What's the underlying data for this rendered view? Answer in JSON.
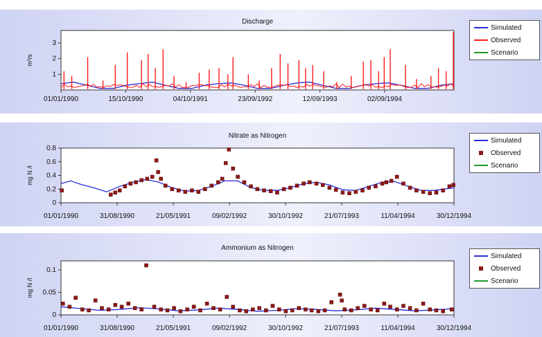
{
  "chart_data": [
    {
      "type": "line",
      "title": "Discharge",
      "ylabel": "m³/s",
      "ylim": [
        0,
        3.8
      ],
      "yticks": [
        "1",
        "2",
        "3"
      ],
      "xticks": [
        "01/01/1990",
        "15/10/1990",
        "04/10/1991",
        "23/09/1992",
        "12/09/1993",
        "02/09/1994"
      ],
      "xstart": "1990-01-01",
      "xend": "1994-12-31",
      "legend": [
        "Simulated",
        "Observed",
        "Scenario"
      ],
      "legend_position": "right",
      "series": [
        {
          "name": "Simulated",
          "color": "#2a2ad8",
          "style": "line",
          "x": [
            "1990-01-01",
            "1990-03-01",
            "1990-05-01",
            "1990-07-01",
            "1990-09-01",
            "1990-11-01",
            "1991-01-01",
            "1991-03-01",
            "1991-05-01",
            "1991-07-01",
            "1991-09-01",
            "1991-11-01",
            "1992-01-01",
            "1992-03-01",
            "1992-05-01",
            "1992-07-01",
            "1992-09-01",
            "1992-11-01",
            "1993-01-01",
            "1993-03-01",
            "1993-05-01",
            "1993-07-01",
            "1993-09-01",
            "1993-11-01",
            "1994-01-01",
            "1994-03-01",
            "1994-05-01",
            "1994-07-01",
            "1994-09-01",
            "1994-11-01",
            "1994-12-31"
          ],
          "y": [
            0.4,
            0.5,
            0.3,
            0.1,
            0.1,
            0.3,
            0.4,
            0.5,
            0.3,
            0.1,
            0.1,
            0.3,
            0.4,
            0.45,
            0.3,
            0.1,
            0.1,
            0.3,
            0.45,
            0.5,
            0.3,
            0.1,
            0.1,
            0.3,
            0.4,
            0.45,
            0.3,
            0.1,
            0.1,
            0.3,
            0.4
          ]
        },
        {
          "name": "Observed",
          "color": "#ff1a1a",
          "style": "spikes",
          "x": [
            "1990-01-15",
            "1990-02-20",
            "1990-05-05",
            "1990-07-15",
            "1990-09-10",
            "1990-11-05",
            "1991-01-10",
            "1991-02-10",
            "1991-03-15",
            "1991-04-20",
            "1991-06-10",
            "1991-08-05",
            "1991-10-05",
            "1991-11-20",
            "1992-01-05",
            "1992-02-15",
            "1992-03-10",
            "1992-05-20",
            "1992-07-10",
            "1992-09-05",
            "1992-10-15",
            "1992-11-20",
            "1993-01-10",
            "1993-02-10",
            "1993-03-15",
            "1993-05-05",
            "1993-07-05",
            "1993-09-10",
            "1993-11-05",
            "1993-12-10",
            "1994-01-15",
            "1994-02-10",
            "1994-03-10",
            "1994-05-20",
            "1994-07-10",
            "1994-09-15",
            "1994-10-20",
            "1994-11-25",
            "1994-12-28"
          ],
          "y": [
            1.2,
            0.9,
            2.1,
            0.6,
            1.6,
            2.4,
            1.9,
            2.3,
            1.4,
            2.6,
            0.9,
            0.5,
            1.1,
            1.3,
            1.4,
            1.0,
            2.1,
            1.0,
            0.6,
            1.4,
            2.3,
            1.7,
            1.9,
            1.4,
            1.6,
            1.2,
            0.5,
            0.9,
            1.8,
            1.9,
            1.2,
            2.1,
            2.6,
            1.6,
            0.7,
            0.9,
            1.4,
            1.2,
            3.7
          ]
        },
        {
          "name": "Scenario",
          "color": "#1a9a2a",
          "style": "line",
          "x": [],
          "y": []
        }
      ]
    },
    {
      "type": "scatter",
      "title": "Nitrate as Nitrogen",
      "ylabel": "mg N /l",
      "ylim": [
        0,
        0.8
      ],
      "yticks": [
        "0",
        "0.2",
        "0.4",
        "0.6",
        "0.8"
      ],
      "xticks": [
        "01/01/1990",
        "31/08/1990",
        "21/05/1991",
        "09/02/1992",
        "30/10/1992",
        "21/07/1993",
        "11/04/1994",
        "30/12/1994"
      ],
      "xstart": "1990-01-01",
      "xend": "1994-12-31",
      "legend": [
        "Simulated",
        "Observed",
        "Scenario"
      ],
      "legend_position": "right",
      "series": [
        {
          "name": "Simulated",
          "color": "#2a2ad8",
          "style": "line",
          "x": [
            "1990-01-01",
            "1990-02-15",
            "1990-04-01",
            "1990-06-01",
            "1990-08-01",
            "1990-10-01",
            "1990-12-01",
            "1991-02-01",
            "1991-04-01",
            "1991-06-01",
            "1991-08-01",
            "1991-10-01",
            "1991-12-01",
            "1992-02-01",
            "1992-04-01",
            "1992-06-01",
            "1992-08-01",
            "1992-10-01",
            "1992-12-01",
            "1993-02-01",
            "1993-04-01",
            "1993-06-01",
            "1993-08-01",
            "1993-10-01",
            "1993-12-01",
            "1994-02-01",
            "1994-04-01",
            "1994-06-01",
            "1994-08-01",
            "1994-10-01",
            "1994-12-31"
          ],
          "y": [
            0.28,
            0.32,
            0.27,
            0.22,
            0.16,
            0.24,
            0.3,
            0.34,
            0.3,
            0.22,
            0.17,
            0.18,
            0.24,
            0.32,
            0.32,
            0.22,
            0.18,
            0.18,
            0.22,
            0.28,
            0.3,
            0.26,
            0.19,
            0.18,
            0.24,
            0.3,
            0.31,
            0.24,
            0.18,
            0.18,
            0.22
          ]
        },
        {
          "name": "Observed",
          "color": "#8b1a1a",
          "style": "points",
          "x": [
            "1990-01-05",
            "1990-08-20",
            "1990-09-10",
            "1990-10-01",
            "1990-10-25",
            "1990-11-20",
            "1990-12-15",
            "1991-01-10",
            "1991-02-05",
            "1991-03-01",
            "1991-03-20",
            "1991-03-28",
            "1991-04-10",
            "1991-05-01",
            "1991-06-01",
            "1991-07-01",
            "1991-08-01",
            "1991-09-01",
            "1991-10-01",
            "1991-11-01",
            "1991-12-01",
            "1992-01-01",
            "1992-01-20",
            "1992-02-05",
            "1992-02-20",
            "1992-03-10",
            "1992-04-01",
            "1992-05-01",
            "1992-06-01",
            "1992-07-01",
            "1992-08-01",
            "1992-09-01",
            "1992-10-01",
            "1992-11-01",
            "1992-12-01",
            "1993-01-01",
            "1993-02-01",
            "1993-03-01",
            "1993-04-01",
            "1993-05-01",
            "1993-06-01",
            "1993-07-01",
            "1993-08-01",
            "1993-09-01",
            "1993-10-01",
            "1993-11-01",
            "1993-12-01",
            "1994-01-01",
            "1994-02-01",
            "1994-02-20",
            "1994-03-15",
            "1994-04-10",
            "1994-05-10",
            "1994-06-10",
            "1994-07-10",
            "1994-08-10",
            "1994-09-10",
            "1994-10-10",
            "1994-11-10",
            "1994-12-10",
            "1994-12-28"
          ],
          "y": [
            0.18,
            0.12,
            0.15,
            0.18,
            0.24,
            0.28,
            0.3,
            0.33,
            0.35,
            0.38,
            0.62,
            0.45,
            0.35,
            0.25,
            0.2,
            0.18,
            0.16,
            0.18,
            0.16,
            0.2,
            0.25,
            0.3,
            0.35,
            0.58,
            0.78,
            0.5,
            0.38,
            0.3,
            0.24,
            0.2,
            0.18,
            0.17,
            0.15,
            0.2,
            0.22,
            0.25,
            0.28,
            0.3,
            0.28,
            0.26,
            0.22,
            0.19,
            0.15,
            0.14,
            0.16,
            0.18,
            0.22,
            0.24,
            0.28,
            0.3,
            0.32,
            0.38,
            0.28,
            0.22,
            0.18,
            0.16,
            0.14,
            0.15,
            0.18,
            0.24,
            0.26
          ]
        },
        {
          "name": "Scenario",
          "color": "#1a9a2a",
          "style": "line",
          "x": [],
          "y": []
        }
      ]
    },
    {
      "type": "scatter",
      "title": "Ammonium as Nitrogen",
      "ylabel": "mg N /l",
      "ylim": [
        0,
        0.12
      ],
      "yticks": [
        "0",
        "0.05",
        "0.1"
      ],
      "xticks": [
        "01/01/1990",
        "31/08/1990",
        "21/05/1991",
        "09/02/1992",
        "30/10/1992",
        "21/07/1993",
        "11/04/1994",
        "30/12/1994"
      ],
      "xstart": "1990-01-01",
      "xend": "1994-12-31",
      "legend": [
        "Simulated",
        "Observed",
        "Scenario"
      ],
      "legend_position": "right",
      "series": [
        {
          "name": "Simulated",
          "color": "#2a2ad8",
          "style": "line",
          "x": [
            "1990-01-01",
            "1990-04-01",
            "1990-07-01",
            "1990-10-01",
            "1991-01-01",
            "1991-04-01",
            "1991-07-01",
            "1991-10-01",
            "1992-01-01",
            "1992-04-01",
            "1992-07-01",
            "1992-10-01",
            "1993-01-01",
            "1993-04-01",
            "1993-07-01",
            "1993-10-01",
            "1994-01-01",
            "1994-04-01",
            "1994-07-01",
            "1994-10-01",
            "1994-12-31"
          ],
          "y": [
            0.018,
            0.014,
            0.01,
            0.012,
            0.016,
            0.013,
            0.009,
            0.011,
            0.015,
            0.012,
            0.008,
            0.01,
            0.014,
            0.012,
            0.009,
            0.011,
            0.015,
            0.012,
            0.009,
            0.011,
            0.014
          ]
        },
        {
          "name": "Observed",
          "color": "#8b1a1a",
          "style": "points",
          "x": [
            "1990-01-10",
            "1990-02-10",
            "1990-03-10",
            "1990-04-10",
            "1990-05-10",
            "1990-06-10",
            "1990-07-10",
            "1990-08-10",
            "1990-09-10",
            "1990-10-10",
            "1990-11-10",
            "1990-12-10",
            "1991-01-10",
            "1991-02-01",
            "1991-03-10",
            "1991-04-10",
            "1991-05-10",
            "1991-06-10",
            "1991-07-10",
            "1991-08-10",
            "1991-09-10",
            "1991-10-10",
            "1991-11-10",
            "1991-12-10",
            "1992-01-10",
            "1992-02-10",
            "1992-03-10",
            "1992-04-10",
            "1992-05-10",
            "1992-06-10",
            "1992-07-10",
            "1992-08-10",
            "1992-09-10",
            "1992-10-10",
            "1992-11-10",
            "1992-12-10",
            "1993-01-10",
            "1993-02-10",
            "1993-03-10",
            "1993-04-10",
            "1993-05-10",
            "1993-06-10",
            "1993-07-20",
            "1993-07-28",
            "1993-08-10",
            "1993-09-10",
            "1993-10-10",
            "1993-11-10",
            "1993-12-10",
            "1994-01-10",
            "1994-02-10",
            "1994-03-10",
            "1994-04-10",
            "1994-05-10",
            "1994-06-10",
            "1994-07-10",
            "1994-08-10",
            "1994-09-10",
            "1994-10-10",
            "1994-11-10",
            "1994-12-20"
          ],
          "y": [
            0.025,
            0.018,
            0.038,
            0.012,
            0.01,
            0.032,
            0.015,
            0.012,
            0.022,
            0.018,
            0.025,
            0.015,
            0.012,
            0.11,
            0.018,
            0.012,
            0.01,
            0.015,
            0.008,
            0.012,
            0.018,
            0.01,
            0.025,
            0.015,
            0.012,
            0.04,
            0.018,
            0.01,
            0.008,
            0.012,
            0.015,
            0.01,
            0.02,
            0.012,
            0.008,
            0.01,
            0.015,
            0.012,
            0.01,
            0.008,
            0.01,
            0.028,
            0.045,
            0.032,
            0.012,
            0.01,
            0.015,
            0.02,
            0.012,
            0.01,
            0.025,
            0.018,
            0.012,
            0.02,
            0.015,
            0.01,
            0.025,
            0.012,
            0.01,
            0.008,
            0.012
          ]
        },
        {
          "name": "Scenario",
          "color": "#1a9a2a",
          "style": "line",
          "x": [],
          "y": []
        }
      ]
    }
  ]
}
